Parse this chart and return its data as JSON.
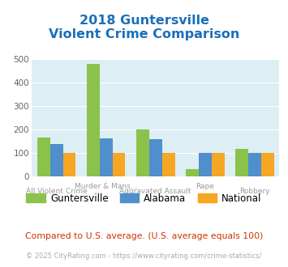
{
  "title_line1": "2018 Guntersville",
  "title_line2": "Violent Crime Comparison",
  "guntersville": [
    165,
    478,
    200,
    30,
    115
  ],
  "alabama": [
    138,
    160,
    158,
    100,
    100
  ],
  "national": [
    100,
    100,
    100,
    100,
    100
  ],
  "colors": {
    "guntersville": "#8bc34a",
    "alabama": "#4f8fcc",
    "national": "#f5a623"
  },
  "ylim": [
    0,
    500
  ],
  "yticks": [
    0,
    100,
    200,
    300,
    400,
    500
  ],
  "background_color": "#ddeef4",
  "grid_color": "#ffffff",
  "title_color": "#1a6fba",
  "legend_labels": [
    "Guntersville",
    "Alabama",
    "National"
  ],
  "footer_text": "Compared to U.S. average. (U.S. average equals 100)",
  "copyright_text": "© 2025 CityRating.com - https://www.cityrating.com/crime-statistics/",
  "label_top": [
    "",
    "Murder & Mans...",
    "",
    "Rape",
    ""
  ],
  "label_bot": [
    "All Violent Crime",
    "",
    "Aggravated Assault",
    "",
    "Robbery"
  ]
}
